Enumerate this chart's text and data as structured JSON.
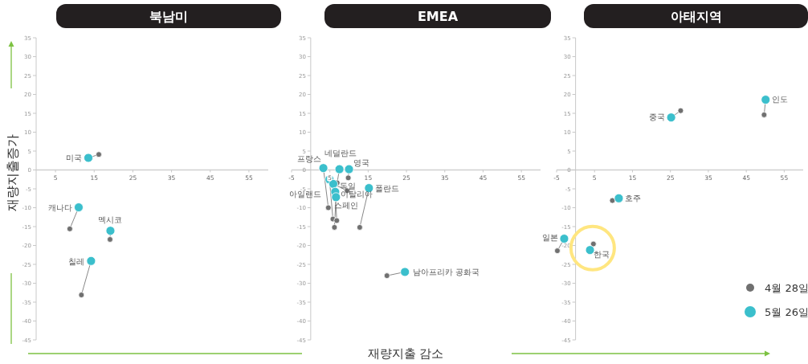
{
  "chart_data": [
    {
      "type": "scatter",
      "title": "북남미",
      "ylabel": "재량지출증가",
      "xlim": [
        0,
        60
      ],
      "xticks": [
        5,
        15,
        25,
        35,
        45,
        55
      ],
      "ylim": [
        -45,
        35
      ],
      "yticks": [
        -45,
        -40,
        -35,
        -30,
        -25,
        -20,
        -15,
        -10,
        -5,
        0,
        5,
        10,
        15,
        20,
        25,
        30,
        35
      ],
      "legend": false,
      "series": [
        {
          "color": "#707070",
          "x": [
            16.2,
            8.7,
            19.1,
            11.7
          ],
          "values": [
            4.1,
            -15.6,
            -18.4,
            -33.1
          ]
        },
        {
          "color": "#3bbfcc",
          "x": [
            13.5,
            11.0,
            19.2,
            14.2
          ],
          "values": [
            3.2,
            -9.9,
            -16.1,
            -24.1
          ]
        }
      ],
      "annotations": [
        {
          "text": "미국",
          "x": 13.5,
          "y": 3.2
        },
        {
          "text": "캐나다",
          "x": 11.0,
          "y": -9.9
        },
        {
          "text": "멕시코",
          "x": 19.2,
          "y": -16.1
        },
        {
          "text": "칠레",
          "x": 14.2,
          "y": -24.1
        }
      ]
    },
    {
      "type": "scatter",
      "title": "EMEA",
      "xlabel": "재량지출 감소",
      "xlim": [
        -5,
        60
      ],
      "xticks": [
        -5,
        5,
        15,
        25,
        35,
        45,
        55
      ],
      "ylim": [
        -45,
        35
      ],
      "yticks": [
        -45,
        -40,
        -35,
        -30,
        -25,
        -20,
        -15,
        -10,
        -5,
        0,
        5,
        10,
        15,
        20,
        25,
        30,
        35
      ],
      "legend": false,
      "series": [
        {
          "color": "#707070",
          "x": [
            4.6,
            5.8,
            6.9,
            9.8,
            9.5,
            6.8,
            6.2,
            12.8,
            19.9
          ],
          "values": [
            -10.0,
            -13.0,
            -3.4,
            -2.1,
            -5.5,
            -13.4,
            -15.2,
            -15.2,
            -28.0
          ]
        },
        {
          "color": "#3bbfcc",
          "x": [
            3.3,
            4.9,
            7.5,
            10.0,
            5.9,
            6.4,
            6.6,
            15.2,
            24.6
          ],
          "values": [
            0.5,
            -2.5,
            0.2,
            0.2,
            -3.7,
            -5.8,
            -7.2,
            -4.8,
            -27.0
          ]
        }
      ],
      "annotations": [
        {
          "text": "프랑스",
          "x": 3.3,
          "y": 0.5
        },
        {
          "text": "아일랜드",
          "x": 4.9,
          "y": -2.5
        },
        {
          "text": "네덜란드",
          "x": 7.5,
          "y": 0.2
        },
        {
          "text": "영국",
          "x": 10.0,
          "y": 0.2
        },
        {
          "text": "독일",
          "x": 5.9,
          "y": -3.7
        },
        {
          "text": "이탈리아",
          "x": 6.4,
          "y": -5.8
        },
        {
          "text": "스페인",
          "x": 6.6,
          "y": -7.2
        },
        {
          "text": "폴란드",
          "x": 15.2,
          "y": -4.8
        },
        {
          "text": "남아프리카 공화국",
          "x": 24.6,
          "y": -27.0
        }
      ]
    },
    {
      "type": "scatter",
      "title": "아태지역",
      "xlim": [
        -5,
        60
      ],
      "xticks": [
        -5,
        5,
        15,
        25,
        35,
        45,
        55
      ],
      "ylim": [
        -45,
        35
      ],
      "yticks": [
        -45,
        -40,
        -35,
        -30,
        -25,
        -20,
        -15,
        -10,
        -5,
        0,
        5,
        10,
        15,
        20,
        25,
        30,
        35
      ],
      "legend": "bottom right",
      "series": [
        {
          "name": "4월 28일",
          "color": "#707070",
          "x": [
            27.7,
            49.7,
            9.7,
            -4.8,
            4.7
          ],
          "values": [
            15.7,
            14.6,
            -8.1,
            -21.4,
            -19.6
          ]
        },
        {
          "name": "5월 26일",
          "color": "#3bbfcc",
          "x": [
            25.2,
            50.1,
            11.4,
            -3.0,
            3.8
          ],
          "values": [
            13.9,
            18.6,
            -7.5,
            -18.2,
            -21.2
          ]
        }
      ],
      "annotations": [
        {
          "text": "중국",
          "x": 25.2,
          "y": 13.9
        },
        {
          "text": "인도",
          "x": 50.1,
          "y": 18.6
        },
        {
          "text": "호주",
          "x": 11.4,
          "y": -7.5
        },
        {
          "text": "일본",
          "x": -3.0,
          "y": -18.2
        },
        {
          "text": "한국",
          "x": 3.8,
          "y": -21.2
        }
      ]
    }
  ]
}
